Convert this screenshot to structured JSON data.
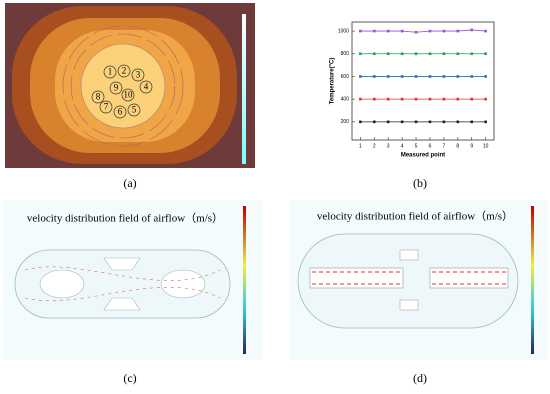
{
  "panels": {
    "a": {
      "caption": "(a)",
      "points": [
        "1",
        "2",
        "3",
        "4",
        "5",
        "6",
        "7",
        "8",
        "9",
        "10"
      ]
    },
    "b": {
      "caption": "(b)"
    },
    "c": {
      "caption": "(c)",
      "title": "velocity distribution field of airflow（m/s）"
    },
    "d": {
      "caption": "(d)",
      "title": "velocity distribution field of airflow（m/s）"
    }
  },
  "chart_data": {
    "type": "line",
    "x_label": "Measured point",
    "y_label": "Temperature(°C)",
    "x": [
      1,
      2,
      3,
      4,
      5,
      6,
      7,
      8,
      9,
      10
    ],
    "xlim": [
      0.4,
      10.6
    ],
    "xticks": [
      1,
      2,
      3,
      4,
      5,
      6,
      7,
      8,
      9,
      10
    ],
    "ylim": [
      40,
      1080
    ],
    "yticks": [
      200,
      400,
      600,
      800,
      1000
    ],
    "series": [
      {
        "color": "#222222",
        "values": [
          200,
          200,
          200,
          200,
          200,
          200,
          200,
          200,
          200,
          200
        ]
      },
      {
        "color": "#e0302a",
        "values": [
          400,
          400,
          400,
          400,
          400,
          400,
          400,
          400,
          400,
          400
        ]
      },
      {
        "color": "#1f6fd1",
        "values": [
          600,
          600,
          600,
          600,
          600,
          600,
          600,
          600,
          600,
          600
        ]
      },
      {
        "color": "#22a04a",
        "values": [
          800,
          800,
          800,
          800,
          800,
          800,
          800,
          800,
          800,
          800
        ]
      },
      {
        "color": "#9b4fd1",
        "values": [
          1000,
          1000,
          1000,
          1000,
          990,
          1000,
          1000,
          1000,
          1010,
          1000
        ]
      }
    ]
  }
}
